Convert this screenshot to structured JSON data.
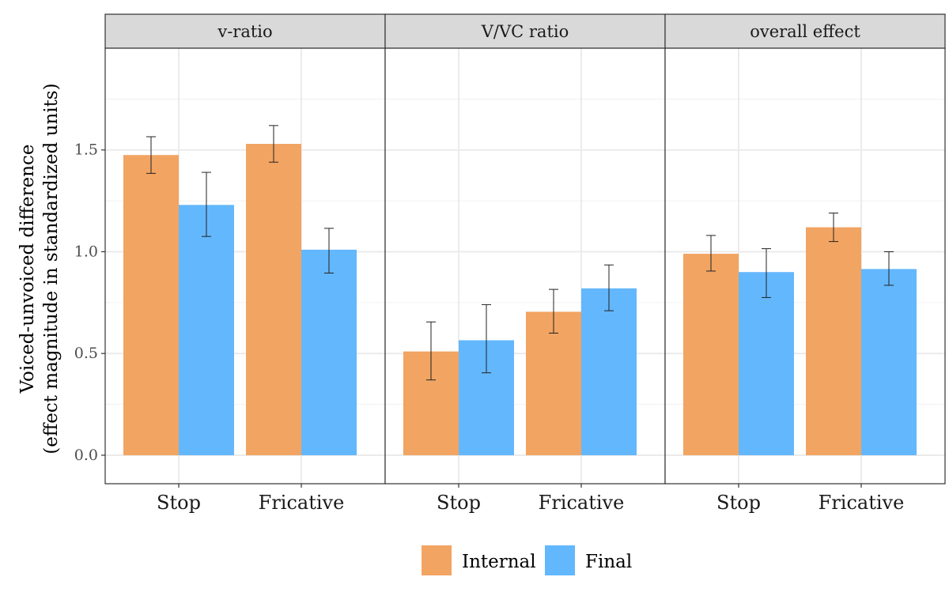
{
  "chart_data": {
    "type": "bar",
    "facets": [
      {
        "title": "v-ratio",
        "categories": [
          "Stop",
          "Fricative"
        ],
        "series": [
          {
            "name": "Internal",
            "values": [
              1.475,
              1.53
            ],
            "lower": [
              1.385,
              1.44
            ],
            "upper": [
              1.565,
              1.62
            ]
          },
          {
            "name": "Final",
            "values": [
              1.23,
              1.01
            ],
            "lower": [
              1.075,
              0.895
            ],
            "upper": [
              1.39,
              1.115
            ]
          }
        ]
      },
      {
        "title": "V/VC ratio",
        "categories": [
          "Stop",
          "Fricative"
        ],
        "series": [
          {
            "name": "Internal",
            "values": [
              0.51,
              0.705
            ],
            "lower": [
              0.37,
              0.6
            ],
            "upper": [
              0.655,
              0.815
            ]
          },
          {
            "name": "Final",
            "values": [
              0.565,
              0.82
            ],
            "lower": [
              0.405,
              0.71
            ],
            "upper": [
              0.74,
              0.935
            ]
          }
        ]
      },
      {
        "title": "overall effect",
        "categories": [
          "Stop",
          "Fricative"
        ],
        "series": [
          {
            "name": "Internal",
            "values": [
              0.99,
              1.12
            ],
            "lower": [
              0.905,
              1.05
            ],
            "upper": [
              1.08,
              1.19
            ]
          },
          {
            "name": "Final",
            "values": [
              0.9,
              0.915
            ],
            "lower": [
              0.775,
              0.835
            ],
            "upper": [
              1.015,
              1.0
            ]
          }
        ]
      }
    ],
    "ylabel_line1": "Voiced-unvoiced difference",
    "ylabel_line2": "(effect magnitude in standardized units)",
    "xlabel": "",
    "ylim": [
      -0.14,
      2.0
    ],
    "yticks": [
      0.0,
      0.5,
      1.0,
      1.5
    ],
    "ytick_labels": [
      "0.0",
      "0.5",
      "1.0",
      "1.5"
    ],
    "grid": true,
    "legend_position": "bottom",
    "legend": [
      {
        "label": "Internal",
        "color": "#F2A462"
      },
      {
        "label": "Final",
        "color": "#63B7FD"
      }
    ]
  }
}
